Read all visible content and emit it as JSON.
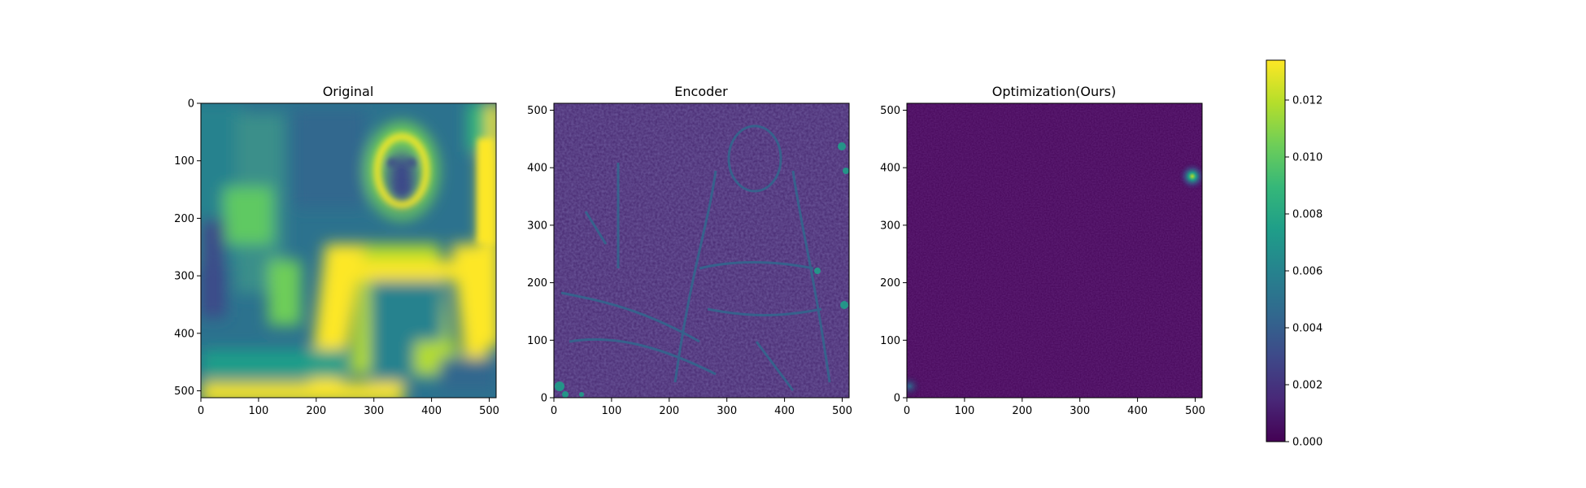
{
  "figure": {
    "colormap": "viridis",
    "colormap_stops": [
      "#440154",
      "#482878",
      "#3e4989",
      "#31688e",
      "#26828e",
      "#1f9e89",
      "#35b779",
      "#6ece58",
      "#b5de2b",
      "#fde725"
    ]
  },
  "chart_data": [
    {
      "type": "heatmap",
      "title": "Original",
      "xlim": [
        0,
        512
      ],
      "ylim": [
        512,
        0
      ],
      "x_ticks": [
        "0",
        "100",
        "200",
        "300",
        "400",
        "500"
      ],
      "y_ticks": [
        "0",
        "100",
        "200",
        "300",
        "400",
        "500"
      ],
      "y_direction": "down",
      "value_range": [
        0,
        0.0134
      ],
      "description_values": "high-intensity (yellow) regions along right border, bottom-left edge, face outline and arm contours; mid values (teal/green) across most of the scene"
    },
    {
      "type": "heatmap",
      "title": "Encoder",
      "xlim": [
        0,
        512
      ],
      "ylim": [
        0,
        512
      ],
      "x_ticks": [
        "0",
        "100",
        "200",
        "300",
        "400",
        "500"
      ],
      "y_ticks": [
        "0",
        "100",
        "200",
        "300",
        "400",
        "500"
      ],
      "y_direction": "up",
      "value_range": [
        0,
        0.0134
      ]
    },
    {
      "type": "heatmap",
      "title": "Optimization(Ours)",
      "xlim": [
        0,
        512
      ],
      "ylim": [
        0,
        512
      ],
      "x_ticks": [
        "0",
        "100",
        "200",
        "300",
        "400",
        "500"
      ],
      "y_ticks": [
        "0",
        "100",
        "200",
        "300",
        "400",
        "500"
      ],
      "y_direction": "up",
      "value_range": [
        0,
        0.0134
      ],
      "hotspots": [
        {
          "x": 495,
          "y": 385,
          "value": 0.0095
        },
        {
          "x": 5,
          "y": 20,
          "value": 0.004
        }
      ]
    }
  ],
  "colorbar": {
    "min": 0.0,
    "max": 0.0134,
    "ticks": [
      {
        "value": 0.0,
        "label": "0.000"
      },
      {
        "value": 0.002,
        "label": "0.002"
      },
      {
        "value": 0.004,
        "label": "0.004"
      },
      {
        "value": 0.006,
        "label": "0.006"
      },
      {
        "value": 0.008,
        "label": "0.008"
      },
      {
        "value": 0.01,
        "label": "0.010"
      },
      {
        "value": 0.012,
        "label": "0.012"
      }
    ]
  }
}
